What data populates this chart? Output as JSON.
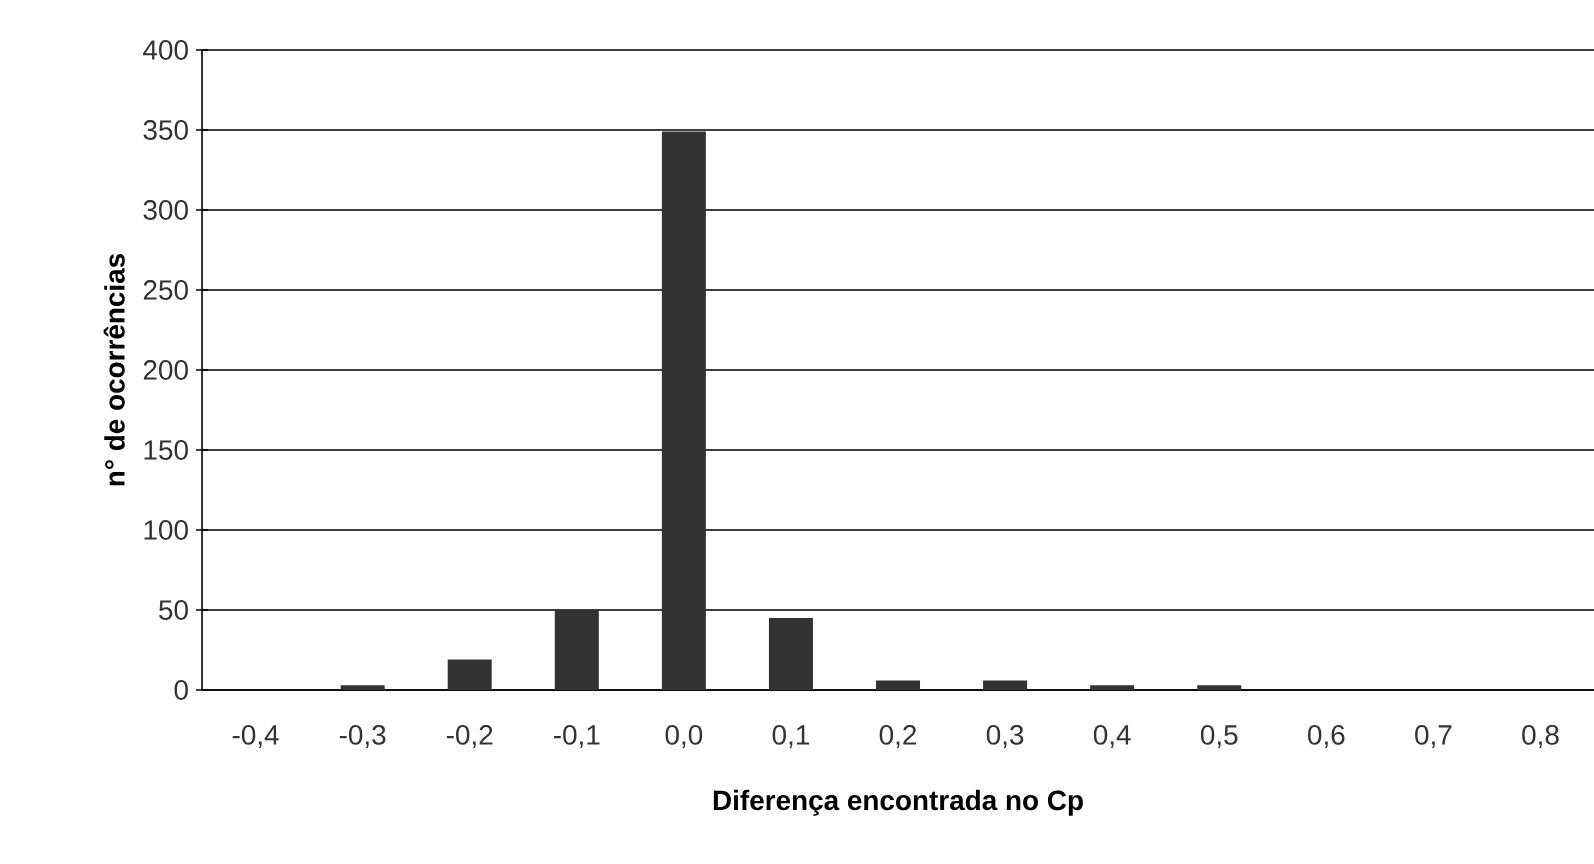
{
  "chart_data": {
    "type": "bar",
    "xlabel": "Diferença encontrada no Cp",
    "ylabel": "n° de ocorrências",
    "categories": [
      "-0,4",
      "-0,3",
      "-0,2",
      "-0,1",
      "0,0",
      "0,1",
      "0,2",
      "0,3",
      "0,4",
      "0,5",
      "0,6",
      "0,7",
      "0,8"
    ],
    "values": [
      0,
      3,
      19,
      50,
      349,
      45,
      6,
      6,
      3,
      3,
      0,
      0,
      0
    ],
    "color": "#333333",
    "ylim": [
      0,
      400
    ],
    "yticks": [
      0,
      50,
      100,
      150,
      200,
      250,
      300,
      350,
      400
    ],
    "grid": "y"
  }
}
